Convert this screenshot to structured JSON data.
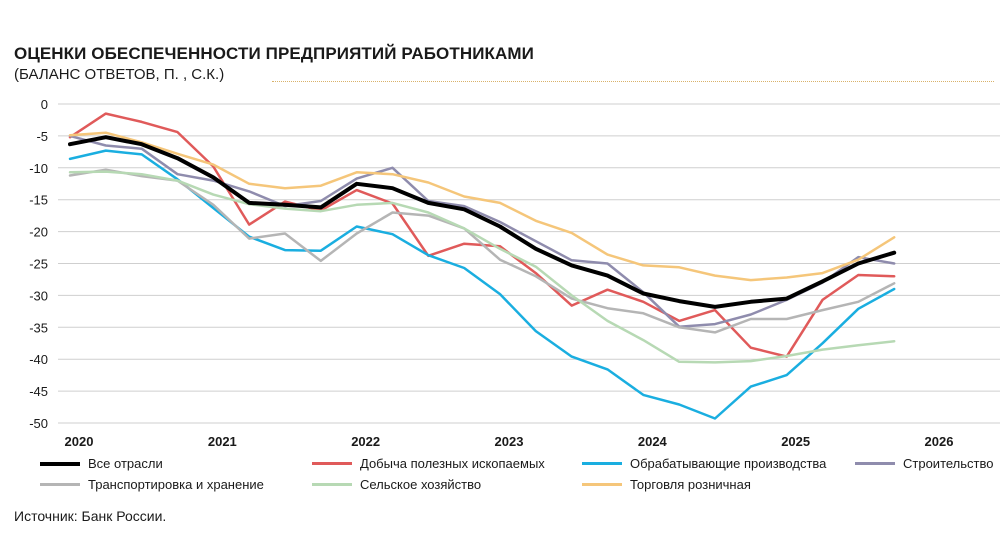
{
  "chart_data": {
    "type": "line",
    "title": "ОЦЕНКИ ОБЕСПЕЧЕННОСТИ ПРЕДПРИЯТИЙ РАБОТНИКАМИ",
    "subtitle": "(БАЛАНС ОТВЕТОВ, П. , С.К.)",
    "xlabel": "",
    "ylabel": "",
    "source": "Источник: Банк России.",
    "xlim": [
      2020,
      2026
    ],
    "ylim": [
      -50,
      0
    ],
    "x_ticks": [
      "2020",
      "2021",
      "2022",
      "2023",
      "2024",
      "2025",
      "2026"
    ],
    "y_ticks": [
      "0",
      "-5",
      "-10",
      "-15",
      "-20",
      "-25",
      "-30",
      "-35",
      "-40",
      "-45",
      "-50"
    ],
    "grid": "horizontal",
    "legend_position": "bottom",
    "x": [
      2020.0,
      2020.25,
      2020.5,
      2020.75,
      2021.0,
      2021.25,
      2021.5,
      2021.75,
      2022.0,
      2022.25,
      2022.5,
      2022.75,
      2023.0,
      2023.25,
      2023.5,
      2023.75,
      2024.0,
      2024.25,
      2024.5,
      2024.75,
      2025.0,
      2025.25,
      2025.5,
      2025.75
    ],
    "series": [
      {
        "name": "Все отрасли",
        "color": "#000000",
        "width": 4,
        "values": [
          -6.3,
          -5.2,
          -6.3,
          -8.5,
          -11.5,
          -15.5,
          -15.8,
          -16.2,
          -12.5,
          -13.2,
          -15.5,
          -16.5,
          -19.2,
          -22.7,
          -25.3,
          -26.9,
          -29.7,
          -30.9,
          -31.8,
          -31.0,
          -30.5,
          -27.8,
          -25.0,
          -23.3
        ]
      },
      {
        "name": "Добыча полезных ископаемых",
        "color": "#e05a5a",
        "width": 2.5,
        "values": [
          -5.2,
          -1.5,
          -2.8,
          -4.4,
          -9.8,
          -18.9,
          -15.3,
          -16.7,
          -13.5,
          -15.6,
          -23.8,
          -21.9,
          -22.3,
          -26.5,
          -31.6,
          -29.1,
          -31.0,
          -34.0,
          -32.3,
          -38.2,
          -39.6,
          -30.7,
          -26.8,
          -27.0
        ]
      },
      {
        "name": "Обрабатывающие производства",
        "color": "#1aaee0",
        "width": 2.5,
        "values": [
          -8.6,
          -7.3,
          -7.9,
          -11.8,
          -16.3,
          -20.8,
          -22.9,
          -23.0,
          -19.2,
          -20.4,
          -23.7,
          -25.7,
          -29.8,
          -35.6,
          -39.6,
          -41.6,
          -45.6,
          -47.1,
          -49.3,
          -44.3,
          -42.5,
          -37.5,
          -32.1,
          -29.0
        ]
      },
      {
        "name": "Строительство",
        "color": "#8f8cad",
        "width": 2.5,
        "values": [
          -5.0,
          -6.5,
          -7.0,
          -11.0,
          -12.0,
          -13.7,
          -16.0,
          -15.2,
          -11.7,
          -10.0,
          -15.2,
          -16.0,
          -18.5,
          -21.5,
          -24.5,
          -25.0,
          -29.5,
          -34.9,
          -34.5,
          -33.0,
          -30.7,
          -28.0,
          -24.0,
          -25.0
        ]
      },
      {
        "name": "Транспортировка и хранение",
        "color": "#b5b5b5",
        "width": 2.5,
        "values": [
          -11.2,
          -10.3,
          -11.3,
          -12.0,
          -15.8,
          -21.1,
          -20.3,
          -24.6,
          -20.3,
          -17.0,
          -17.5,
          -19.5,
          -24.4,
          -27.0,
          -30.5,
          -32.0,
          -32.8,
          -35.0,
          -35.8,
          -33.7,
          -33.7,
          -32.3,
          -31.0,
          -28.1
        ]
      },
      {
        "name": "Сельское хозяйство",
        "color": "#b7d9b4",
        "width": 2.5,
        "values": [
          -10.7,
          -10.6,
          -11.0,
          -12.0,
          -14.2,
          -15.7,
          -16.4,
          -16.8,
          -15.8,
          -15.5,
          -17.0,
          -19.5,
          -22.7,
          -25.5,
          -30.0,
          -34.0,
          -37.0,
          -40.4,
          -40.5,
          -40.3,
          -39.5,
          -38.5,
          -37.8,
          -37.2
        ]
      },
      {
        "name": "Торговля розничная",
        "color": "#f5c67a",
        "width": 2.5,
        "values": [
          -4.9,
          -4.5,
          -6.0,
          -7.8,
          -9.5,
          -12.5,
          -13.2,
          -12.8,
          -10.7,
          -11.0,
          -12.3,
          -14.5,
          -15.5,
          -18.3,
          -20.2,
          -23.6,
          -25.3,
          -25.6,
          -26.9,
          -27.6,
          -27.2,
          -26.5,
          -24.4,
          -20.9
        ]
      }
    ]
  }
}
